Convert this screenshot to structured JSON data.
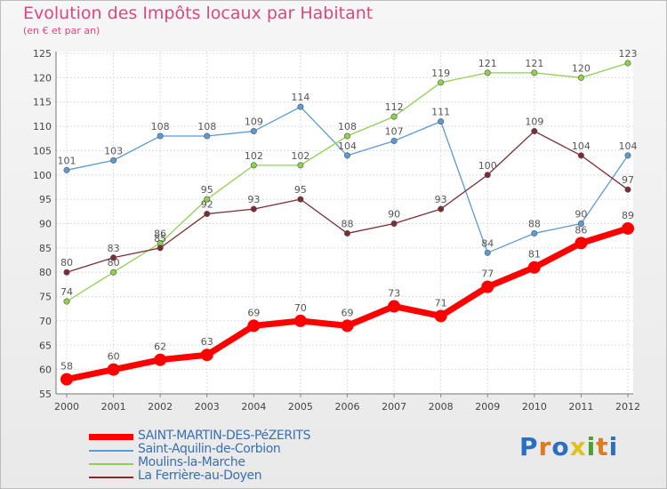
{
  "header": {
    "title": "Evolution des Impôts locaux par Habitant",
    "subtitle": "(en € et par an)"
  },
  "brand": {
    "text": "Proxiti",
    "letter_colors": [
      "#2b6fc2",
      "#e07b1f",
      "#2b6fc2",
      "#e0c21f",
      "#4aa02c",
      "#e07b1f",
      "#2b6fc2"
    ]
  },
  "chart_data": {
    "type": "line",
    "x": [
      "2000",
      "2001",
      "2002",
      "2003",
      "2004",
      "2005",
      "2006",
      "2007",
      "2008",
      "2009",
      "2010",
      "2011",
      "2012"
    ],
    "ylim": [
      55,
      125
    ],
    "yticks": [
      55,
      60,
      65,
      70,
      75,
      80,
      85,
      90,
      95,
      100,
      105,
      110,
      115,
      120,
      125
    ],
    "grid": true,
    "legend_position": "bottom-left",
    "series": [
      {
        "name": "Saint-Aquilin-de-Corbion",
        "color": "#5b9bd5",
        "values": [
          101,
          103,
          108,
          108,
          109,
          114,
          104,
          107,
          111,
          84,
          88,
          90,
          104
        ]
      },
      {
        "name": "Moulins-la-Marche",
        "color": "#8fd14f",
        "values": [
          74,
          80,
          86,
          95,
          102,
          102,
          108,
          112,
          119,
          121,
          121,
          120,
          123
        ]
      },
      {
        "name": "La Ferrière-au-Doyen",
        "color": "#7b2c35",
        "values": [
          80,
          83,
          85,
          92,
          93,
          95,
          88,
          90,
          93,
          100,
          109,
          104,
          97
        ]
      },
      {
        "name": "SAINT-MARTIN-DES-PéZERITS",
        "color": "#ff0000",
        "values": [
          58,
          60,
          62,
          63,
          69,
          70,
          69,
          73,
          71,
          77,
          81,
          86,
          89
        ]
      }
    ],
    "legend_order": [
      3,
      0,
      1,
      2
    ]
  }
}
